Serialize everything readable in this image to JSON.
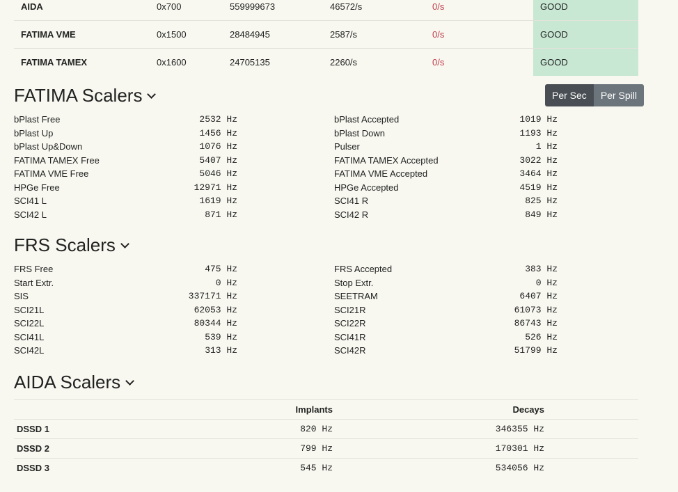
{
  "status_rows": [
    {
      "name": "AIDA",
      "id": "0x700",
      "count": "559999673",
      "rate": "46572/s",
      "errors": "0/s",
      "status": "GOOD"
    },
    {
      "name": "FATIMA VME",
      "id": "0x1500",
      "count": "28484945",
      "rate": "2587/s",
      "errors": "0/s",
      "status": "GOOD"
    },
    {
      "name": "FATIMA TAMEX",
      "id": "0x1600",
      "count": "24705135",
      "rate": "2260/s",
      "errors": "0/s",
      "status": "GOOD"
    }
  ],
  "fatima": {
    "title": "FATIMA Scalers",
    "toggle": {
      "per_sec": "Per Sec",
      "per_spill": "Per Spill"
    },
    "left": [
      {
        "label": "bPlast Free",
        "value": "2532 Hz"
      },
      {
        "label": "bPlast Up",
        "value": "1456 Hz"
      },
      {
        "label": "bPlast Up&Down",
        "value": "1076 Hz"
      },
      {
        "label": "FATIMA TAMEX Free",
        "value": "5407 Hz"
      },
      {
        "label": "FATIMA VME Free",
        "value": "5046 Hz"
      },
      {
        "label": "HPGe Free",
        "value": "12971 Hz"
      },
      {
        "label": "SCI41 L",
        "value": "1619 Hz"
      },
      {
        "label": "SCI42 L",
        "value": "871 Hz"
      }
    ],
    "right": [
      {
        "label": "bPlast Accepted",
        "value": "1019 Hz"
      },
      {
        "label": "bPlast Down",
        "value": "1193 Hz"
      },
      {
        "label": "Pulser",
        "value": "1 Hz"
      },
      {
        "label": "FATIMA TAMEX Accepted",
        "value": "3022 Hz"
      },
      {
        "label": "FATIMA VME Accepted",
        "value": "3464 Hz"
      },
      {
        "label": "HPGe Accepted",
        "value": "4519 Hz"
      },
      {
        "label": "SCI41 R",
        "value": "825 Hz"
      },
      {
        "label": "SCI42 R",
        "value": "849 Hz"
      }
    ]
  },
  "frs": {
    "title": "FRS Scalers",
    "left": [
      {
        "label": "FRS Free",
        "value": "475 Hz"
      },
      {
        "label": "Start Extr.",
        "value": "0 Hz"
      },
      {
        "label": "SIS",
        "value": "337171 Hz"
      },
      {
        "label": "SCI21L",
        "value": "62053 Hz"
      },
      {
        "label": "SCI22L",
        "value": "80344 Hz"
      },
      {
        "label": "SCI41L",
        "value": "539 Hz"
      },
      {
        "label": "SCI42L",
        "value": "313 Hz"
      }
    ],
    "right": [
      {
        "label": "FRS Accepted",
        "value": "383 Hz"
      },
      {
        "label": "Stop Extr.",
        "value": "0 Hz"
      },
      {
        "label": "SEETRAM",
        "value": "6407 Hz"
      },
      {
        "label": "SCI21R",
        "value": "61073 Hz"
      },
      {
        "label": "SCI22R",
        "value": "86743 Hz"
      },
      {
        "label": "SCI41R",
        "value": "526 Hz"
      },
      {
        "label": "SCI42R",
        "value": "51799 Hz"
      }
    ]
  },
  "aida": {
    "title": "AIDA Scalers",
    "headers": {
      "implants": "Implants",
      "decays": "Decays"
    },
    "rows": [
      {
        "name": "DSSD 1",
        "implants": "820 Hz",
        "decays": "346355 Hz"
      },
      {
        "name": "DSSD 2",
        "implants": "799 Hz",
        "decays": "170301 Hz"
      },
      {
        "name": "DSSD 3",
        "implants": "545 Hz",
        "decays": "534056 Hz"
      }
    ]
  }
}
